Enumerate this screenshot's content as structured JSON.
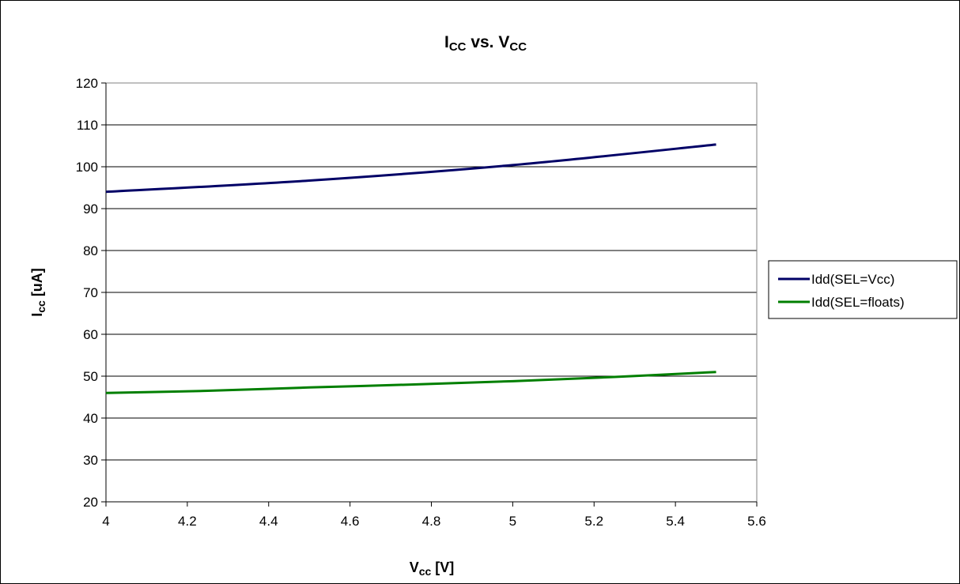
{
  "chart_data": {
    "type": "line",
    "title": {
      "main": "I",
      "sub": "CC",
      "mid": " vs. V",
      "sub2": "CC"
    },
    "xlabel": {
      "main": "V",
      "sub": "cc",
      "rest": " [V]"
    },
    "ylabel": {
      "main": "I",
      "sub": "cc",
      "rest": " [uA]"
    },
    "xlim": [
      4,
      5.6
    ],
    "ylim": [
      20,
      120
    ],
    "xticks": [
      4,
      4.2,
      4.4,
      4.6,
      4.8,
      5,
      5.2,
      5.4,
      5.6
    ],
    "yticks": [
      20,
      30,
      40,
      50,
      60,
      70,
      80,
      90,
      100,
      110,
      120
    ],
    "xtick_labels": [
      "4",
      "4.2",
      "4.4",
      "4.6",
      "4.8",
      "5",
      "5.2",
      "5.4",
      "5.6"
    ],
    "ytick_labels": [
      "20",
      "30",
      "40",
      "50",
      "60",
      "70",
      "80",
      "90",
      "100",
      "110",
      "120"
    ],
    "grid": "horizontal",
    "legend_position": "right",
    "series": [
      {
        "name": "Idd(SEL=Vcc)",
        "color": "#000066",
        "x": [
          4,
          4.5,
          5,
          5.5
        ],
        "y": [
          94,
          96.7,
          100.4,
          105.3
        ]
      },
      {
        "name": "Idd(SEL=floats)",
        "color": "#007F00",
        "x": [
          4,
          4.25,
          4.5,
          4.75,
          5,
          5.25,
          5.5
        ],
        "y": [
          46,
          46.5,
          47.3,
          48,
          48.8,
          49.8,
          51
        ]
      }
    ]
  }
}
